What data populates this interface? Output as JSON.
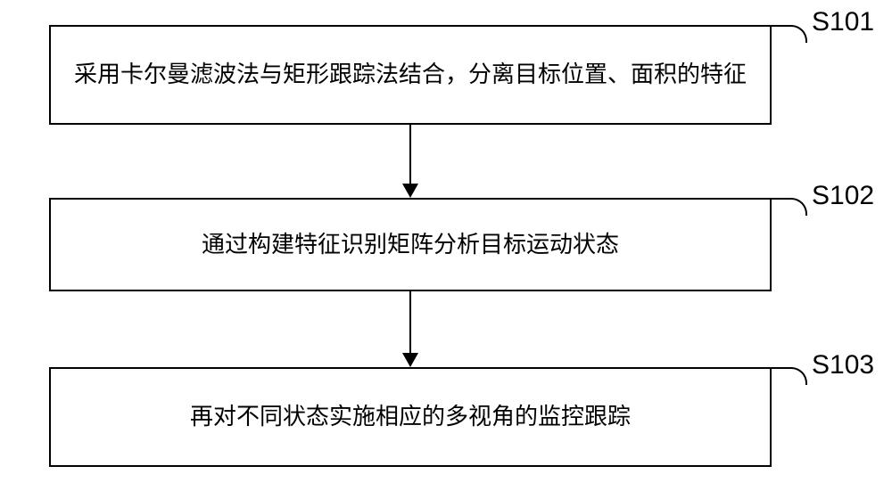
{
  "flowchart": {
    "type": "flowchart",
    "background_color": "#ffffff",
    "border_color": "#000000",
    "text_color": "#000000",
    "box_border_width": 2,
    "text_fontsize": 26,
    "label_fontsize": 30,
    "steps": [
      {
        "id": "S101",
        "text": "采用卡尔曼滤波法与矩形跟踪法结合，分离目标位置、面积的特征",
        "label": "S101"
      },
      {
        "id": "S102",
        "text": "通过构建特征识别矩阵分析目标运动状态",
        "label": "S102"
      },
      {
        "id": "S103",
        "text": "再对不同状态实施相应的多视角的监控跟踪",
        "label": "S103"
      }
    ],
    "arrows": [
      {
        "from": "S101",
        "to": "S102"
      },
      {
        "from": "S102",
        "to": "S103"
      }
    ]
  }
}
